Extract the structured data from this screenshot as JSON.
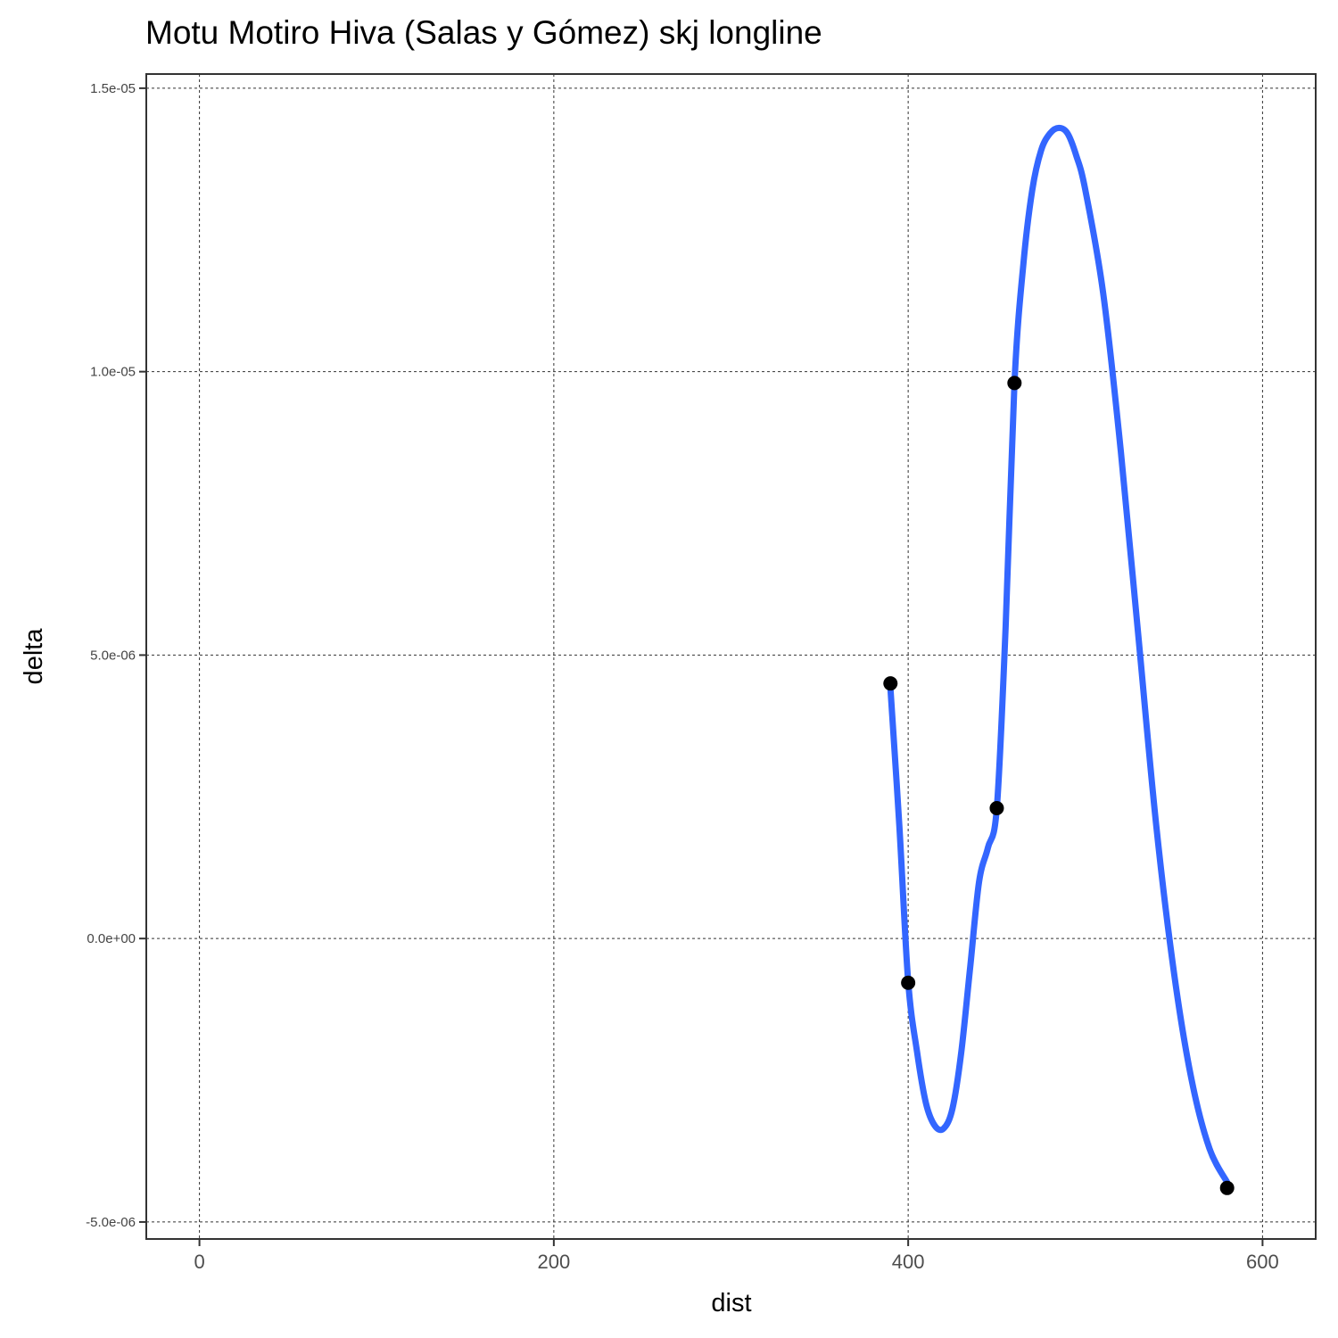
{
  "chart_data": {
    "type": "scatter",
    "title": "Motu Motiro Hiva (Salas y Gómez) skj longline",
    "xlabel": "dist",
    "ylabel": "delta",
    "xlim": [
      -30,
      630
    ],
    "ylim": [
      -5.3e-06,
      1.525e-05
    ],
    "x_ticks": [
      0,
      200,
      400,
      600
    ],
    "x_tick_labels": [
      "0",
      "200",
      "400",
      "600"
    ],
    "y_ticks": [
      -5e-06,
      0,
      5e-06,
      1e-05,
      1.5e-05
    ],
    "y_tick_labels": [
      "-5.0e-06",
      "0.0e+00",
      "5.0e-06",
      "1.0e-05",
      "1.5e-05"
    ],
    "grid": true,
    "legend": "none",
    "colors": {
      "points": "#000000",
      "smooth": "#3366ff"
    },
    "points": [
      {
        "x": 390,
        "y": 4.5e-06
      },
      {
        "x": 400,
        "y": -7.8e-07
      },
      {
        "x": 450,
        "y": 2.3e-06
      },
      {
        "x": 460,
        "y": 9.8e-06
      },
      {
        "x": 580,
        "y": -4.4e-06
      }
    ],
    "series": [
      {
        "type": "smooth",
        "x": [
          390,
          395,
          400,
          405,
          410,
          415,
          420,
          425,
          430,
          435,
          440,
          445,
          450,
          455,
          460,
          465,
          470,
          475,
          480,
          485,
          490,
          495,
          500,
          510,
          520,
          530,
          540,
          550,
          560,
          570,
          580
        ],
        "y": [
          4.4e-06,
          2e-06,
          -7.5e-07,
          -2e-06,
          -2.9e-06,
          -3.3e-06,
          -3.35e-06,
          -3e-06,
          -2e-06,
          -5e-07,
          1e-06,
          1.6e-06,
          2.3e-06,
          5.5e-06,
          9.8e-06,
          1.19e-05,
          1.32e-05,
          1.39e-05,
          1.42e-05,
          1.43e-05,
          1.42e-05,
          1.38e-05,
          1.32e-05,
          1.14e-05,
          8.6e-06,
          5.3e-06,
          2e-06,
          -6e-07,
          -2.5e-06,
          -3.7e-06,
          -4.3e-06
        ]
      }
    ]
  }
}
